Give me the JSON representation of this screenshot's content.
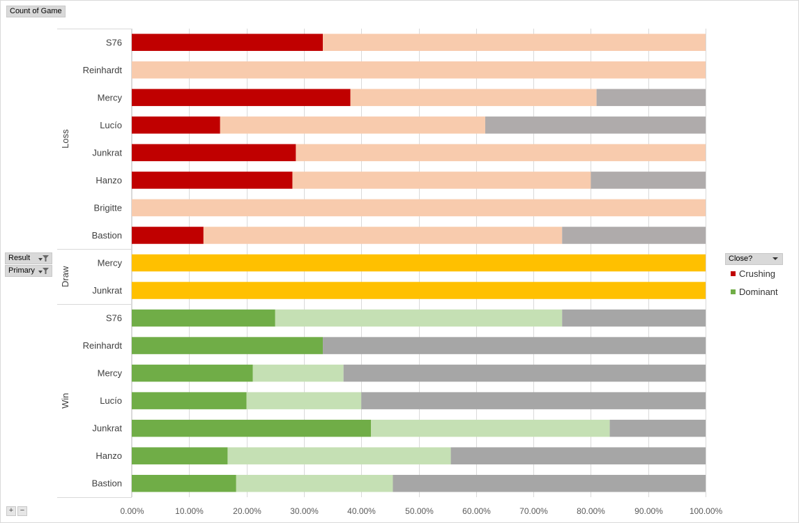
{
  "pivot": {
    "value_field": "Count of Game",
    "row_fields": [
      "Result",
      "Primary"
    ],
    "legend_field": "Close?"
  },
  "legend": {
    "items": [
      {
        "label": "Crushing",
        "color": "#c00000"
      },
      {
        "label": "Dominant",
        "color": "#70ad47"
      }
    ]
  },
  "chart_data": {
    "type": "bar",
    "orientation": "horizontal",
    "stacked": "percent",
    "xlim": [
      0,
      100
    ],
    "x_ticks": [
      "0.00%",
      "10.00%",
      "20.00%",
      "30.00%",
      "40.00%",
      "50.00%",
      "60.00%",
      "70.00%",
      "80.00%",
      "90.00%",
      "100.00%"
    ],
    "grid": true,
    "groups": [
      {
        "name": "Loss",
        "colors": [
          "#c00000",
          "#f8cbad",
          "#afabab"
        ],
        "rows": [
          {
            "label": "S76",
            "values": [
              33.3,
              66.7,
              0
            ]
          },
          {
            "label": "Reinhardt",
            "values": [
              0,
              100,
              0
            ]
          },
          {
            "label": "Mercy",
            "values": [
              38.1,
              42.9,
              19.0
            ]
          },
          {
            "label": "Lucío",
            "values": [
              15.4,
              46.2,
              38.4
            ]
          },
          {
            "label": "Junkrat",
            "values": [
              28.6,
              71.4,
              0
            ]
          },
          {
            "label": "Hanzo",
            "values": [
              28.0,
              52.0,
              20.0
            ]
          },
          {
            "label": "Brigitte",
            "values": [
              0,
              100,
              0
            ]
          },
          {
            "label": "Bastion",
            "values": [
              12.5,
              62.5,
              25.0
            ]
          }
        ]
      },
      {
        "name": "Draw",
        "colors": [
          "#ffc000"
        ],
        "rows": [
          {
            "label": "Mercy",
            "values": [
              100
            ]
          },
          {
            "label": "Junkrat",
            "values": [
              100
            ]
          }
        ]
      },
      {
        "name": "Win",
        "colors": [
          "#70ad47",
          "#c5e0b4",
          "#a6a6a6"
        ],
        "rows": [
          {
            "label": "S76",
            "values": [
              25.0,
              50.0,
              25.0
            ]
          },
          {
            "label": "Reinhardt",
            "values": [
              33.3,
              0,
              66.7
            ]
          },
          {
            "label": "Mercy",
            "values": [
              21.1,
              15.8,
              63.1
            ]
          },
          {
            "label": "Lucío",
            "values": [
              20.0,
              20.0,
              60.0
            ]
          },
          {
            "label": "Junkrat",
            "values": [
              41.7,
              41.6,
              16.7
            ]
          },
          {
            "label": "Hanzo",
            "values": [
              16.7,
              38.9,
              44.4
            ]
          },
          {
            "label": "Bastion",
            "values": [
              18.2,
              27.3,
              54.5
            ]
          }
        ]
      }
    ]
  }
}
